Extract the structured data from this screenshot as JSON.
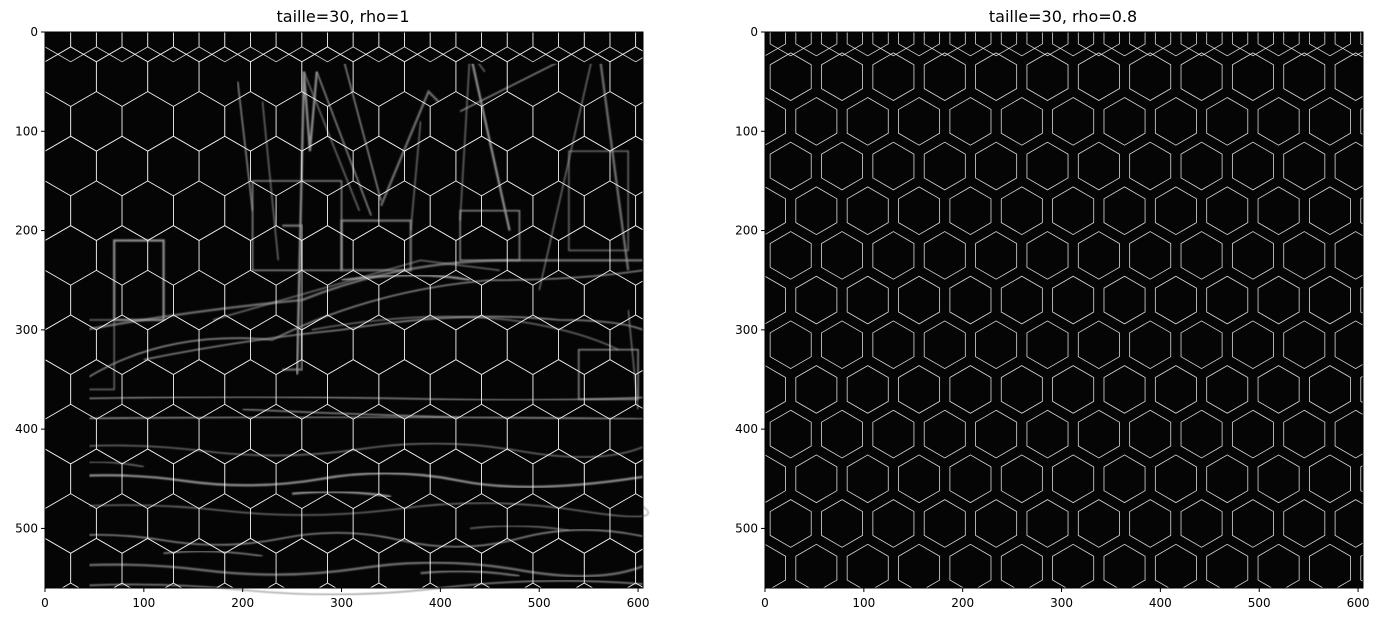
{
  "panels": [
    {
      "title": "taille=30, rho=1",
      "rho": 1,
      "hex_size": 30,
      "xlim": [
        0,
        605
      ],
      "ylim": [
        560,
        0
      ],
      "x_ticks": [
        0,
        100,
        200,
        300,
        400,
        500,
        600
      ],
      "y_ticks": [
        0,
        100,
        200,
        300,
        400,
        500
      ]
    },
    {
      "title": "taille=30, rho=0.8",
      "rho": 0.8,
      "hex_size": 30,
      "xlim": [
        0,
        605
      ],
      "ylim": [
        560,
        0
      ],
      "x_ticks": [
        0,
        100,
        200,
        300,
        400,
        500,
        600
      ],
      "y_ticks": [
        0,
        100,
        200,
        300,
        400,
        500
      ]
    }
  ],
  "colors": {
    "image_background": "#050505",
    "edges": "#9a9a9a",
    "grid": "#f2f2f2",
    "axes": "#000000"
  }
}
